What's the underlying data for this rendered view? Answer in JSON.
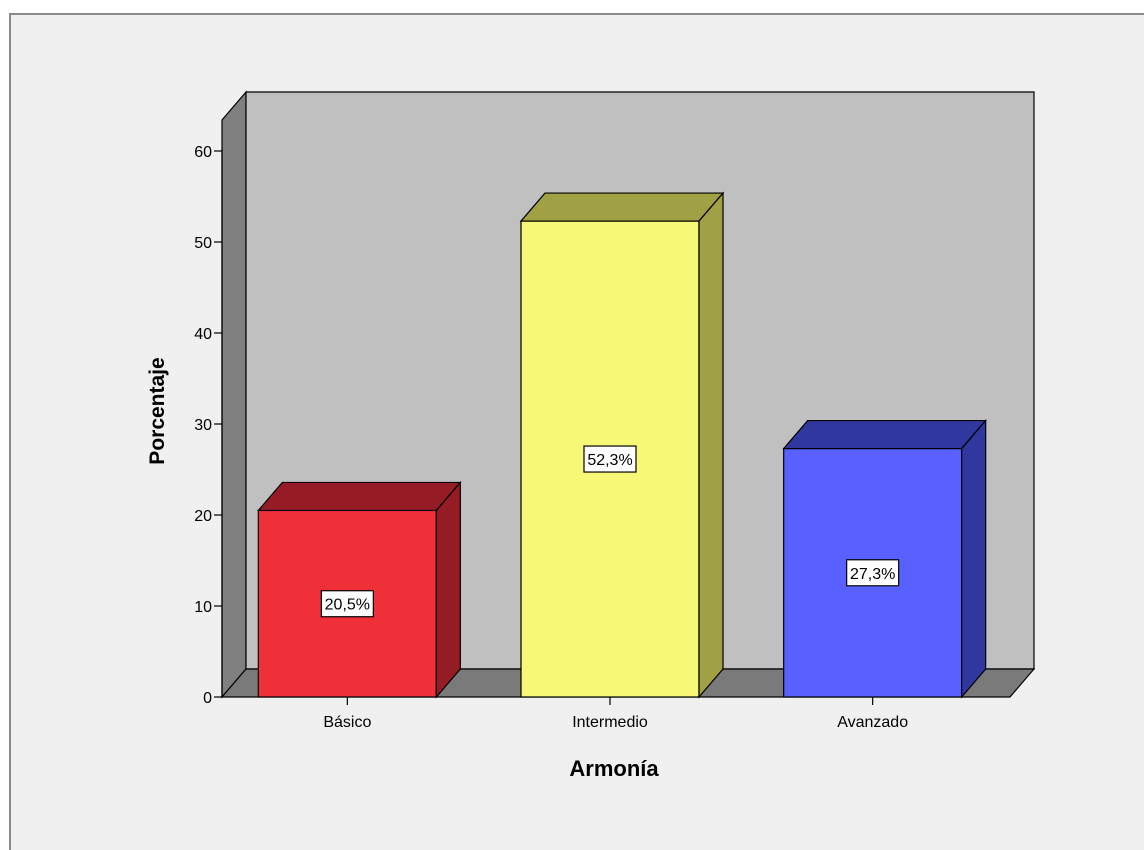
{
  "chart_data": {
    "type": "bar",
    "style": "3d",
    "categories": [
      "Básico",
      "Intermedio",
      "Avanzado"
    ],
    "values": [
      20.5,
      52.3,
      27.3
    ],
    "data_labels": [
      "20,5%",
      "52,3%",
      "27,3%"
    ],
    "colors": {
      "bars": [
        "#f03038",
        "#f8f878",
        "#5860ff"
      ],
      "bar_tops": [
        "#951b24",
        "#a0a044",
        "#3038a0"
      ],
      "bar_sides": [
        "#951b24",
        "#a0a044",
        "#3038a0"
      ],
      "background_wall": "#c0c0c0",
      "side_wall": "#808080",
      "floor": "#7a7a7a",
      "frame_background": "#f0f0f0"
    },
    "xlabel": "Armonía",
    "ylabel": "Porcentaje",
    "ylim": [
      0,
      60
    ],
    "yticks": [
      0,
      10,
      20,
      30,
      40,
      50,
      60
    ],
    "grid": false,
    "legend": "none"
  }
}
